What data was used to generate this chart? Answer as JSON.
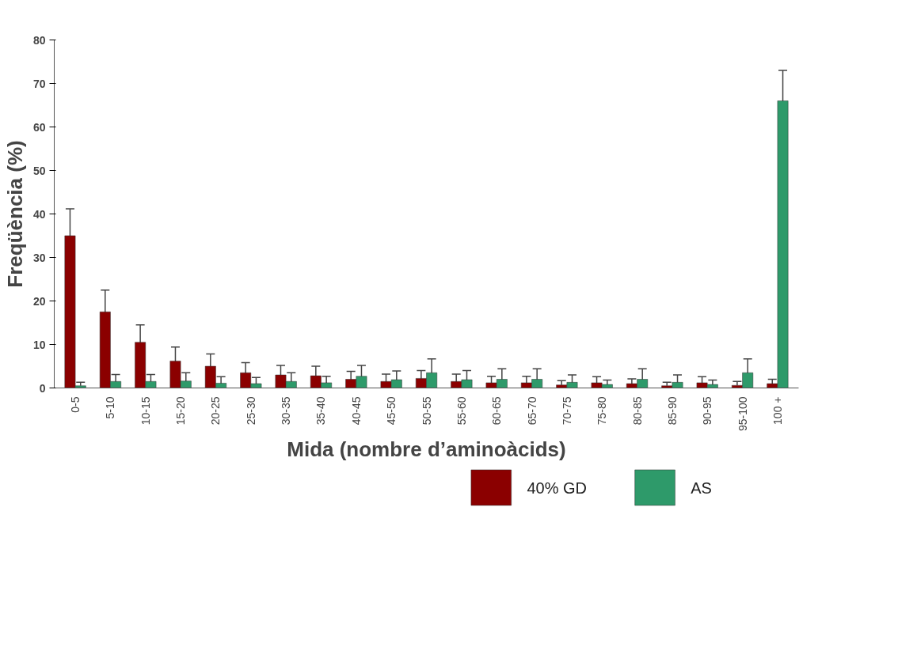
{
  "chart_data": {
    "type": "bar",
    "xlabel": "Mida (nombre d’aminoàcids)",
    "ylabel": "Freqüència (%)",
    "categories": [
      "0-5",
      "5-10",
      "10-15",
      "15-20",
      "20-25",
      "25-30",
      "30-35",
      "35-40",
      "40-45",
      "45-50",
      "50-55",
      "55-60",
      "60-65",
      "65-70",
      "70-75",
      "75-80",
      "80-85",
      "85-90",
      "90-95",
      "95-100",
      "100 +"
    ],
    "series": [
      {
        "name": "40% GD",
        "color": "#8b0000",
        "values": [
          35,
          17.5,
          10.5,
          6.2,
          5,
          3.5,
          3,
          2.8,
          2,
          1.5,
          2.2,
          1.5,
          1.2,
          1.2,
          0.7,
          1.2,
          1,
          0.5,
          1.2,
          0.6,
          1
        ],
        "errors": [
          6.2,
          5,
          4,
          3.2,
          2.8,
          2.3,
          2.2,
          2.2,
          1.8,
          1.7,
          1.8,
          1.7,
          1.5,
          1.5,
          [
            0.7,
            1.7
          ],
          1.4,
          [
            1,
            2.1
          ],
          [
            0.5,
            1.3
          ],
          1.4,
          [
            0.6,
            1.5
          ],
          [
            1,
            2
          ]
        ]
      },
      {
        "name": "AS",
        "color": "#2e9a6a",
        "values": [
          0.5,
          1.5,
          1.5,
          1.6,
          1.1,
          1,
          1.5,
          1.2,
          2.7,
          1.9,
          3.5,
          1.9,
          2,
          2,
          1.3,
          0.8,
          2,
          1.3,
          0.8,
          3.5,
          66
        ],
        "errors": [
          [
            0.5,
            1.3
          ],
          1.6,
          1.6,
          1.9,
          1.5,
          1.4,
          2,
          1.5,
          2.5,
          2,
          3.2,
          2.1,
          2.4,
          2.4,
          1.7,
          [
            0.8,
            1.8
          ],
          2.4,
          1.7,
          [
            0.8,
            1.8
          ],
          3.2,
          7
        ]
      }
    ],
    "ylim": [
      0,
      80
    ],
    "yticks": [
      0,
      10,
      20,
      30,
      40,
      50,
      60,
      70,
      80
    ],
    "grid": false,
    "legend": "bottom right"
  }
}
